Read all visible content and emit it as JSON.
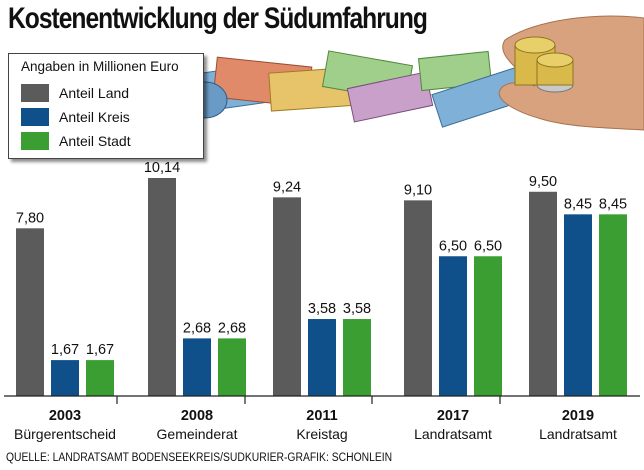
{
  "title": "Kostenentwicklung der Südumfahrung",
  "legend": {
    "title": "Angaben in Millionen Euro",
    "items": [
      {
        "label": "Anteil Land",
        "color": "#5b5b5b"
      },
      {
        "label": "Anteil Kreis",
        "color": "#0f4f8a"
      },
      {
        "label": "Anteil Stadt",
        "color": "#3a9e32"
      }
    ]
  },
  "source": "QUELLE: LANDRATSAMT BODENSEEKREIS/SÜDKURIER-GRAFIK: SCHÖNLEIN",
  "chart_data": {
    "type": "bar",
    "categories": [
      "2003",
      "2008",
      "2011",
      "2017",
      "2019"
    ],
    "category_sublabels": [
      "Bürgerentscheid",
      "Gemeinderat",
      "Kreistag",
      "Landratsamt",
      "Landratsamt"
    ],
    "series": [
      {
        "name": "Anteil Land",
        "color": "#5b5b5b",
        "values": [
          7.8,
          10.14,
          9.24,
          9.1,
          9.5
        ],
        "labels": [
          "7,80",
          "10,14",
          "9,24",
          "9,10",
          "9,50"
        ]
      },
      {
        "name": "Anteil Kreis",
        "color": "#0f4f8a",
        "values": [
          1.67,
          2.68,
          3.58,
          6.5,
          8.45
        ],
        "labels": [
          "1,67",
          "2,68",
          "3,58",
          "6,50",
          "8,45"
        ]
      },
      {
        "name": "Anteil Stadt",
        "color": "#3a9e32",
        "values": [
          1.67,
          2.68,
          3.58,
          6.5,
          8.45
        ],
        "labels": [
          "1,67",
          "2,68",
          "3,58",
          "6,50",
          "8,45"
        ]
      }
    ],
    "ylim": [
      0,
      10.14
    ],
    "grid": false,
    "legend_position": "top-left"
  }
}
